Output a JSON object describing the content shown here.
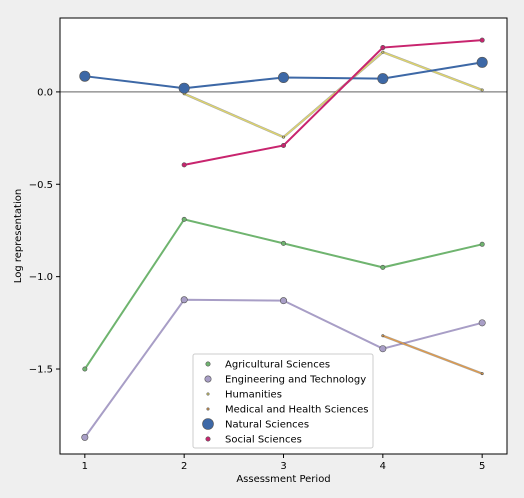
{
  "chart_data": {
    "type": "line",
    "xlabel": "Assessment Period",
    "ylabel": "Log representation",
    "xlim": [
      0.75,
      5.25
    ],
    "ylim": [
      -1.96,
      0.4
    ],
    "xticks": [
      1,
      2,
      3,
      4,
      5
    ],
    "xtick_labels": [
      "1",
      "2",
      "3",
      "4",
      "5"
    ],
    "yticks": [
      -1.5,
      -1.0,
      -0.5,
      0.0
    ],
    "ytick_labels": [
      "−1.5",
      "−1.0",
      "−0.5",
      "0.0"
    ],
    "reference_line": {
      "y": 0,
      "color": "#808080"
    },
    "grid": false,
    "legend_position": "lower center",
    "series": [
      {
        "name": "Agricultural Sciences",
        "color": "#6fb46f",
        "marker_size": "small",
        "x": [
          1,
          2,
          3,
          4,
          5
        ],
        "y": [
          -1.5,
          -0.69,
          -0.82,
          -0.95,
          -0.825
        ]
      },
      {
        "name": "Engineering and Technology",
        "color": "#a89ec6",
        "marker_size": "medium",
        "x": [
          1,
          2,
          3,
          4,
          5
        ],
        "y": [
          -1.87,
          -1.125,
          -1.13,
          -1.39,
          -1.25
        ]
      },
      {
        "name": "Humanities",
        "color": "#dfd56a",
        "marker_size": "tiny",
        "x": [
          2,
          3,
          4,
          5
        ],
        "y": [
          -0.01,
          -0.245,
          0.215,
          0.01
        ]
      },
      {
        "name": "Medical and Health Sciences",
        "color": "#e09a4a",
        "marker_size": "tiny",
        "x": [
          4,
          5
        ],
        "y": [
          -1.32,
          -1.525
        ]
      },
      {
        "name": "Natural Sciences",
        "color": "#3d68a6",
        "marker_size": "large",
        "x": [
          1,
          2,
          3,
          4,
          5
        ],
        "y": [
          0.085,
          0.02,
          0.078,
          0.072,
          0.16
        ]
      },
      {
        "name": "Social Sciences",
        "color": "#c8246e",
        "marker_size": "small",
        "x": [
          2,
          3,
          4,
          5
        ],
        "y": [
          -0.395,
          -0.29,
          0.24,
          0.28
        ]
      }
    ]
  }
}
